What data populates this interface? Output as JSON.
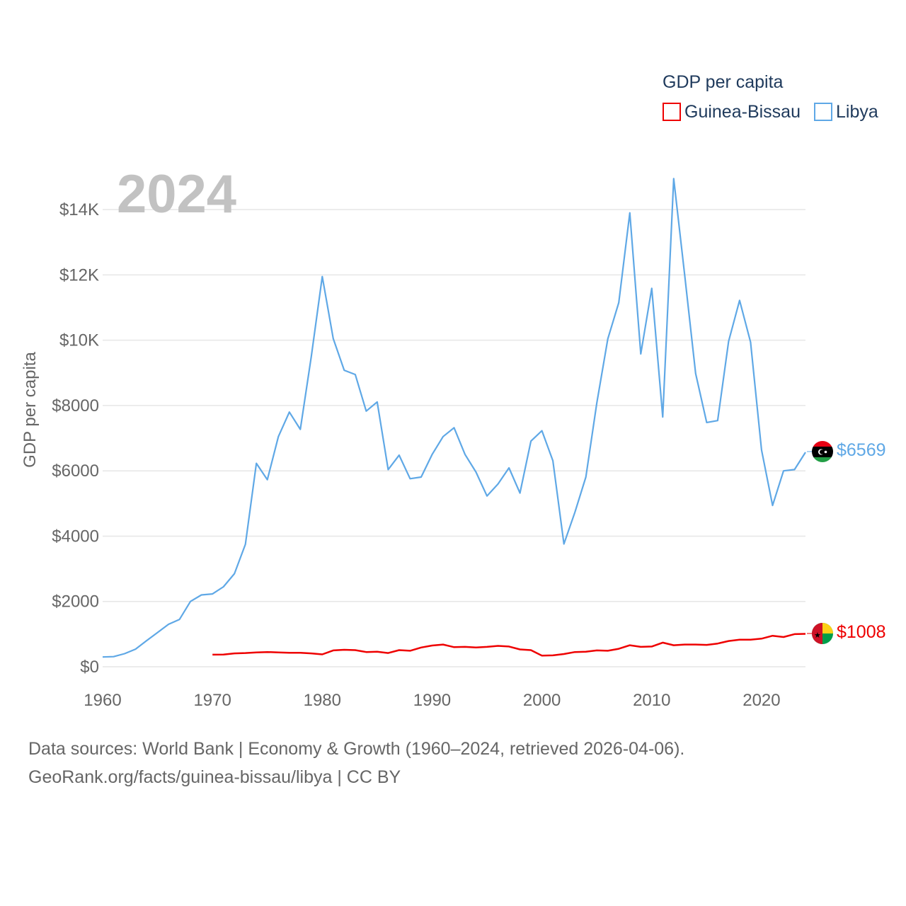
{
  "chart_data": {
    "type": "line",
    "year_label": "2024",
    "ylabel": "GDP per capita",
    "legend": {
      "title": "GDP per capita",
      "placement": "top-right"
    },
    "xlim": [
      1960,
      2025
    ],
    "ylim": [
      0,
      15000
    ],
    "x_ticks": [
      1960,
      1970,
      1980,
      1990,
      2000,
      2010,
      2020
    ],
    "x_tick_labels": [
      "1960",
      "1970",
      "1980",
      "1990",
      "2000",
      "2010",
      "2020"
    ],
    "y_ticks": [
      0,
      2000,
      4000,
      6000,
      8000,
      10000,
      12000,
      14000
    ],
    "y_tick_labels": [
      "$0",
      "$2000",
      "$4000",
      "$6000",
      "$8000",
      "$10K",
      "$12K",
      "$14K"
    ],
    "series": [
      {
        "name": "Guinea-Bissau",
        "color": "#ee0000",
        "end_label": "$1008",
        "flag": "guinea-bissau-flag",
        "start_year": 1970,
        "values": [
          370,
          375,
          410,
          420,
          440,
          450,
          440,
          430,
          430,
          410,
          380,
          500,
          520,
          510,
          450,
          460,
          420,
          510,
          490,
          590,
          650,
          680,
          600,
          610,
          590,
          610,
          640,
          620,
          530,
          510,
          340,
          350,
          390,
          450,
          460,
          500,
          490,
          550,
          660,
          610,
          620,
          740,
          660,
          680,
          680,
          670,
          710,
          790,
          830,
          830,
          860,
          950,
          910,
          1000,
          1008
        ]
      },
      {
        "name": "Libya",
        "color": "#5fa8e6",
        "end_label": "$6569",
        "flag": "libya-flag",
        "start_year": 1960,
        "values": [
          300,
          310,
          400,
          540,
          800,
          1050,
          1300,
          1450,
          2000,
          2200,
          2230,
          2450,
          2850,
          3750,
          6230,
          5730,
          7050,
          7800,
          7270,
          9500,
          11950,
          10050,
          9080,
          8950,
          7830,
          8110,
          6040,
          6480,
          5760,
          5810,
          6500,
          7050,
          7320,
          6500,
          5960,
          5230,
          5600,
          6090,
          5320,
          6910,
          7230,
          6310,
          3760,
          4730,
          5810,
          8080,
          10040,
          11150,
          13900,
          9580,
          11590,
          7650,
          14950,
          12000,
          8980,
          7480,
          7540,
          9970,
          11220,
          9940,
          6640,
          4940,
          6000,
          6040,
          6569
        ]
      }
    ]
  },
  "footer": {
    "line1": "Data sources: World Bank | Economy & Growth (1960–2024, retrieved 2026-04-06).",
    "line2": "GeoRank.org/facts/guinea-bissau/libya | CC BY"
  }
}
